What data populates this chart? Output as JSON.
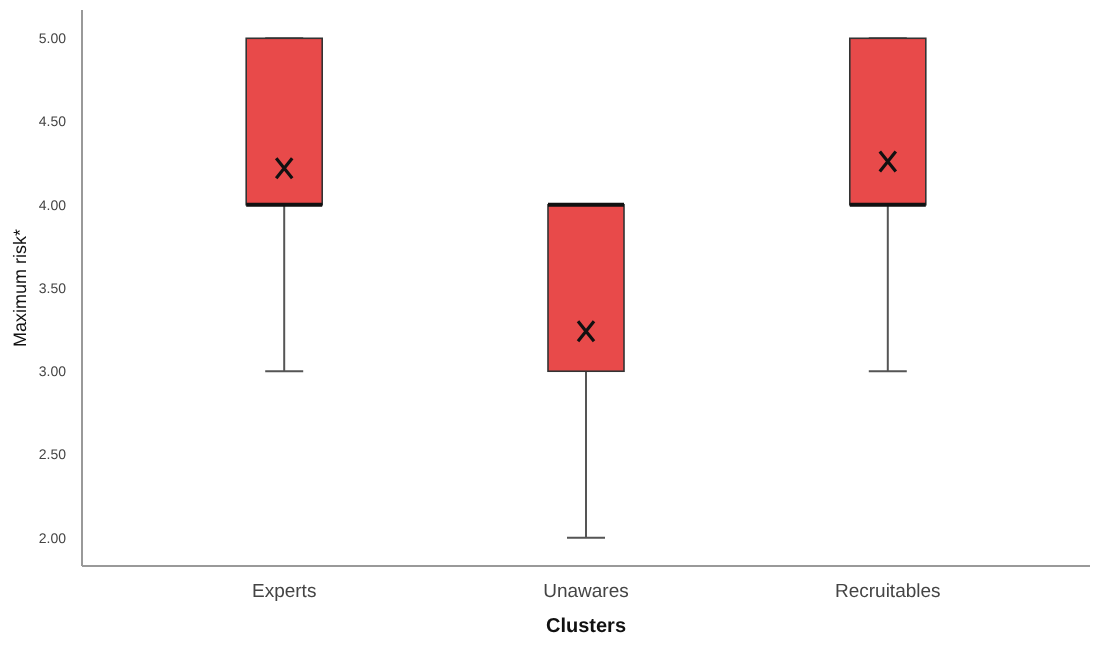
{
  "chart_data": {
    "type": "box",
    "xlabel": "Clusters",
    "ylabel": "Maximum risk*",
    "categories": [
      "Experts",
      "Unawares",
      "Recruitables"
    ],
    "color": "#e84a4a",
    "marker": "cross",
    "ylim": [
      1.83,
      5.17
    ],
    "yticks": [
      {
        "value": 2,
        "label": "2.00"
      },
      {
        "value": 2.5,
        "label": "2.50"
      },
      {
        "value": 3,
        "label": "3.00"
      },
      {
        "value": 3.5,
        "label": "3.50"
      },
      {
        "value": 4,
        "label": "4.00"
      },
      {
        "value": 4.5,
        "label": "4.50"
      },
      {
        "value": 5,
        "label": "5.00"
      }
    ],
    "boxes": [
      {
        "low": 3,
        "q1": 4,
        "median": 4,
        "q3": 5,
        "high": 5,
        "mean": 4.22
      },
      {
        "low": 2,
        "q1": 3,
        "median": 4,
        "q3": 4,
        "high": 4,
        "mean": 3.24
      },
      {
        "low": 3,
        "q1": 4,
        "median": 4,
        "q3": 5,
        "high": 5,
        "mean": 4.26
      }
    ]
  }
}
